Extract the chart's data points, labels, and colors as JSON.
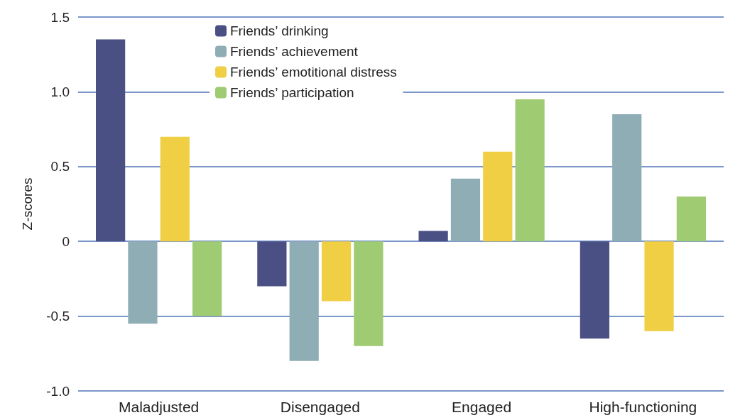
{
  "chart_data": {
    "type": "bar",
    "ylabel": "Z-scores",
    "categories": [
      "Maladjusted",
      "Disengaged",
      "Engaged",
      "High-functioning"
    ],
    "series": [
      {
        "name": "Friends’ drinking",
        "color": "#4a4f84",
        "values": [
          1.35,
          -0.3,
          0.07,
          -0.65
        ]
      },
      {
        "name": "Friends’ achievement",
        "color": "#8fadb5",
        "values": [
          -0.55,
          -0.8,
          0.42,
          0.85
        ]
      },
      {
        "name": "Friends’ emotitional distress",
        "color": "#f0cf45",
        "values": [
          0.7,
          -0.4,
          0.6,
          -0.6
        ]
      },
      {
        "name": "Friends’ participation",
        "color": "#9fcb73",
        "values": [
          -0.5,
          -0.7,
          0.95,
          0.3
        ]
      }
    ],
    "ylim": [
      -1.0,
      1.5
    ],
    "yticks": [
      {
        "value": -1,
        "label": "-1.0"
      },
      -0.5,
      0,
      0.5,
      {
        "value": 1,
        "label": "1.0"
      },
      1.5
    ],
    "grid": "y",
    "legend": "top left"
  }
}
